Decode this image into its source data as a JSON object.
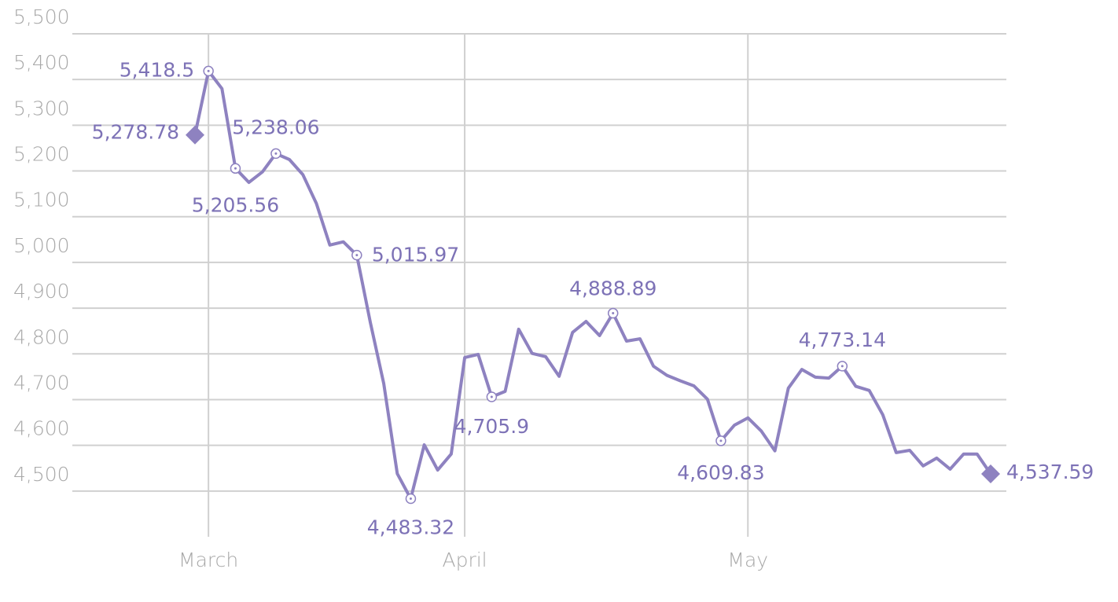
{
  "chart_data": {
    "type": "line",
    "categories": [
      null,
      "March",
      null,
      null,
      null,
      null,
      null,
      null,
      null,
      null,
      null,
      null,
      null,
      null,
      null,
      null,
      null,
      null,
      null,
      null,
      "April",
      null,
      null,
      null,
      null,
      null,
      null,
      null,
      null,
      null,
      null,
      null,
      null,
      null,
      null,
      null,
      null,
      null,
      null,
      null,
      null,
      "May",
      null,
      null,
      null,
      null,
      null,
      null,
      null,
      null,
      null,
      null,
      null,
      null,
      null,
      null,
      null,
      null,
      null,
      null
    ],
    "series": [
      {
        "color": "#8e82c0",
        "values": [
          5278.78,
          5418.5,
          5380,
          5205.56,
          5175,
          5198,
          5238.06,
          5225,
          5192,
          5129,
          5038,
          5045,
          5015.97,
          4869,
          4735,
          4538,
          4483.32,
          4601,
          4546,
          4581,
          4792,
          4799,
          4705.9,
          4718,
          4854,
          4801,
          4794,
          4751,
          4847,
          4871,
          4840,
          4888.89,
          4828,
          4833,
          4773,
          4753,
          4741,
          4730,
          4701,
          4609.83,
          4644,
          4660,
          4631,
          4588,
          4725,
          4766,
          4749,
          4747,
          4773.14,
          4729,
          4720,
          4667,
          4584,
          4589,
          4555,
          4572,
          4548,
          4581,
          4581,
          4537.59
        ],
        "value_labels": [
          "5,278.78",
          "5,418.5",
          null,
          "5,205.56",
          null,
          null,
          "5,238.06",
          null,
          null,
          null,
          null,
          null,
          "5,015.97",
          null,
          null,
          null,
          "4,483.32",
          null,
          null,
          null,
          null,
          null,
          "4,705.9",
          null,
          null,
          null,
          null,
          null,
          null,
          null,
          null,
          "4,888.89",
          null,
          null,
          null,
          null,
          null,
          null,
          null,
          "4,609.83",
          null,
          null,
          null,
          null,
          null,
          null,
          null,
          null,
          "4,773.14",
          null,
          null,
          null,
          null,
          null,
          null,
          null,
          null,
          null,
          null,
          "4,537.59"
        ]
      }
    ],
    "ylim": [
      4400,
      5500
    ],
    "yticks": [
      {
        "value": 4500,
        "label": "4,500"
      },
      {
        "value": 4600,
        "label": "4,600"
      },
      {
        "value": 4700,
        "label": "4,700"
      },
      {
        "value": 4800,
        "label": "4,800"
      },
      {
        "value": 4900,
        "label": "4,900"
      },
      {
        "value": 5000,
        "label": "5,000"
      },
      {
        "value": 5100,
        "label": "5,100"
      },
      {
        "value": 5200,
        "label": "5,200"
      },
      {
        "value": 5300,
        "label": "5,300"
      },
      {
        "value": 5400,
        "label": "5,400"
      },
      {
        "value": 5500,
        "label": "5,500"
      }
    ],
    "grid": true
  }
}
